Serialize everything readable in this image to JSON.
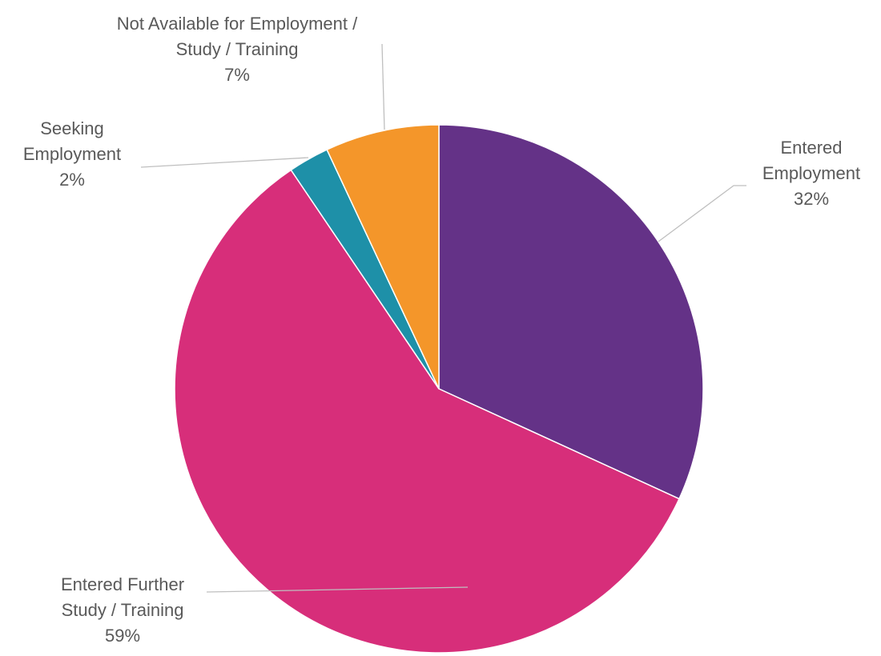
{
  "chart_data": {
    "type": "pie",
    "slices": [
      {
        "label": "Entered Employment",
        "label_lines": [
          "Entered",
          "Employment"
        ],
        "percent_label": "32%",
        "value": 32,
        "color": "#643287"
      },
      {
        "label": "Entered Further Study / Training",
        "label_lines": [
          "Entered Further",
          "Study / Training"
        ],
        "percent_label": "59%",
        "value": 59,
        "color": "#d72e7a"
      },
      {
        "label": "Seeking Employment",
        "label_lines": [
          "Seeking",
          "Employment"
        ],
        "percent_label": "2%",
        "value": 2.5,
        "color": "#1e90a8"
      },
      {
        "label": "Not Available for Employment / Study / Training",
        "label_lines": [
          "Not Available for Employment /",
          "Study / Training"
        ],
        "percent_label": "7%",
        "value": 7,
        "color": "#f4962a"
      }
    ],
    "start_angle": "12 o'clock",
    "direction": "clockwise",
    "legend": "none (data labels with leader lines)"
  }
}
